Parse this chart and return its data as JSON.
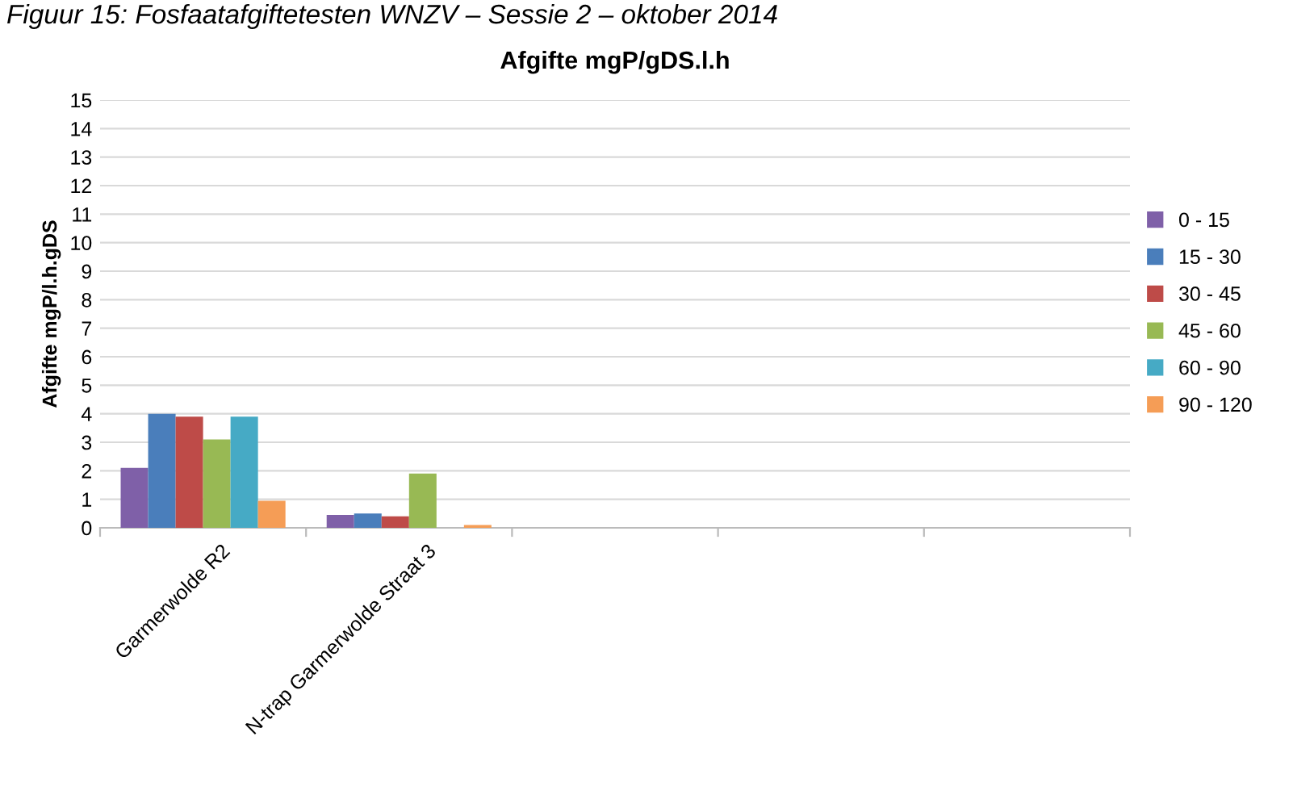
{
  "chart_data": {
    "type": "bar",
    "title": "Afgifte mgP/gDS.l.h",
    "ylabel": "Afgifte mgP/l.h.gDS",
    "annotations": [
      "Figuur 15: Fosfaatafgiftetesten WNZV – Sessie 2 – oktober 2014"
    ],
    "categories": [
      "Garmerwolde R2",
      "N-trap Garmerwolde Straat 3",
      null,
      null,
      null
    ],
    "series": [
      {
        "name": "0 - 15",
        "color": "#7f60a8",
        "values": [
          2.1,
          0.45,
          null,
          null,
          null
        ]
      },
      {
        "name": "15 - 30",
        "color": "#4a7ebb",
        "values": [
          4.0,
          0.5,
          null,
          null,
          null
        ]
      },
      {
        "name": "30 - 45",
        "color": "#be4b48",
        "values": [
          3.9,
          0.4,
          null,
          null,
          null
        ]
      },
      {
        "name": "45 - 60",
        "color": "#98b954",
        "values": [
          3.1,
          1.9,
          null,
          null,
          null
        ]
      },
      {
        "name": "60 - 90",
        "color": "#46aac5",
        "values": [
          3.9,
          0,
          null,
          null,
          null
        ]
      },
      {
        "name": "90 - 120",
        "color": "#f59d56",
        "values": [
          0.95,
          0.1,
          null,
          null,
          null
        ]
      }
    ],
    "ylim": [
      0,
      15
    ],
    "yticks": [
      0,
      1,
      2,
      3,
      4,
      5,
      6,
      7,
      8,
      9,
      10,
      11,
      12,
      13,
      14,
      15
    ],
    "grid": "y",
    "legend": "right"
  }
}
